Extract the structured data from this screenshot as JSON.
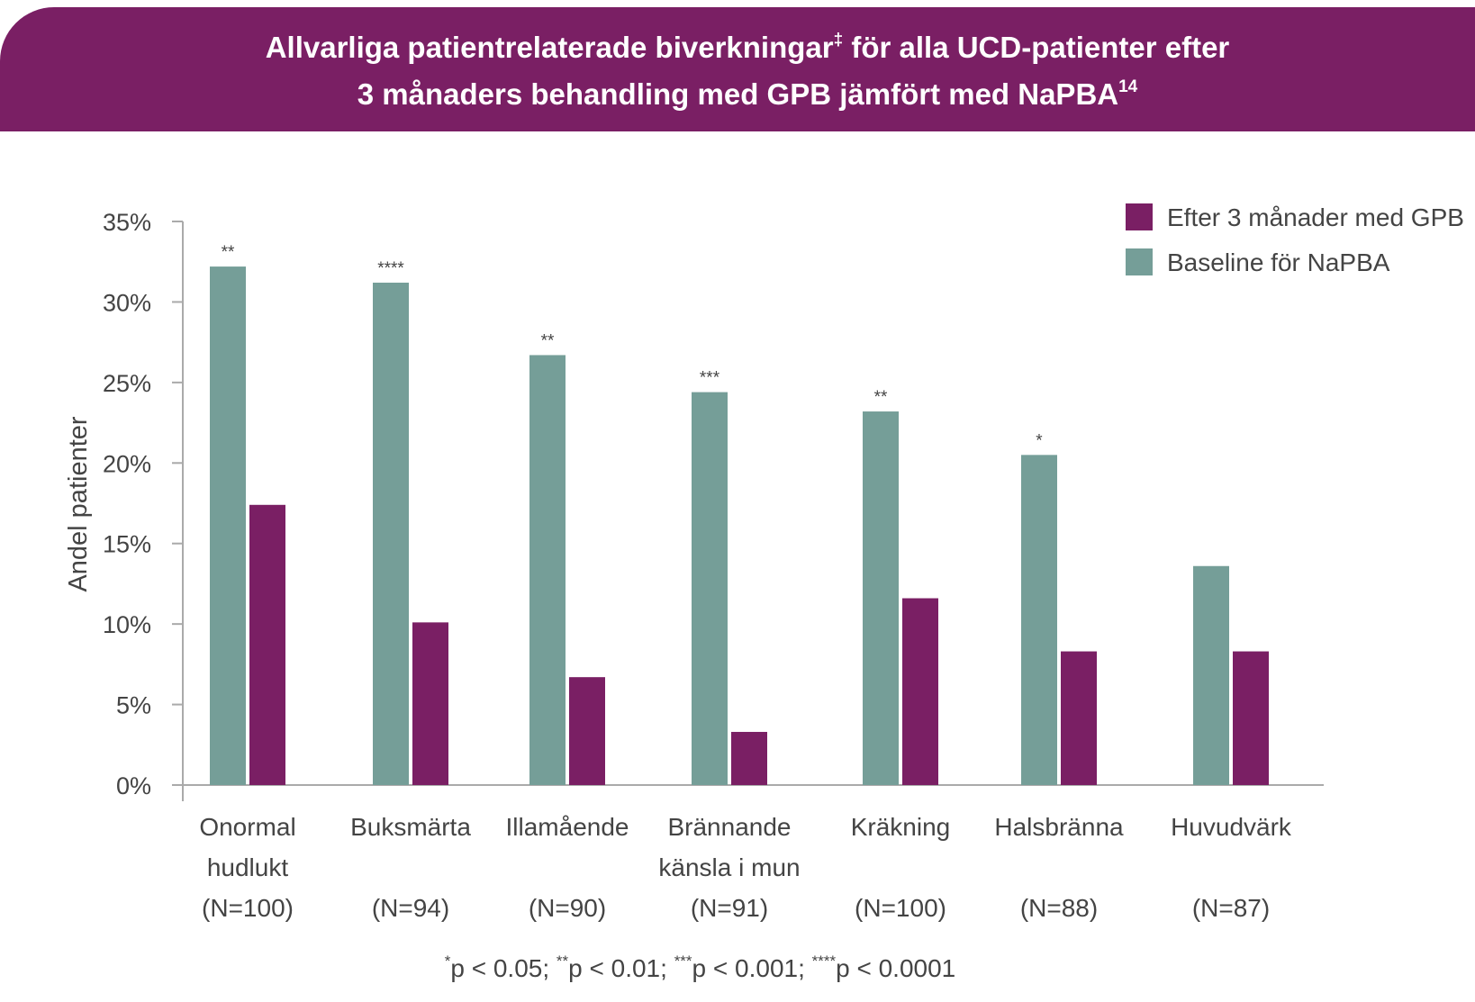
{
  "title": {
    "line1_main": "Allvarliga patientrelaterade biverkningar",
    "line1_sup": "‡",
    "line1_end": " för alla UCD-patienter efter",
    "line2_main": "3 månaders behandling med GPB jämfört med NaPBA",
    "line2_sup": "14"
  },
  "colors": {
    "banner": "#7a1f64",
    "gpb": "#7a1f64",
    "napba": "#759e98",
    "text": "#444444",
    "axis": "#aaaaaa"
  },
  "chart_data": {
    "type": "bar",
    "ylabel": "Andel patienter",
    "ylim": [
      0,
      35
    ],
    "yticks": [
      0,
      5,
      10,
      15,
      20,
      25,
      30,
      35
    ],
    "ytick_labels": [
      "0%",
      "5%",
      "10%",
      "15%",
      "20%",
      "25%",
      "30%",
      "35%"
    ],
    "categories": [
      {
        "label_lines": [
          "Onormal",
          "hudlukt"
        ],
        "n": "(N=100)",
        "significance": "**"
      },
      {
        "label_lines": [
          "Buksmärta"
        ],
        "n": "(N=94)",
        "significance": "****"
      },
      {
        "label_lines": [
          "Illamående"
        ],
        "n": "(N=90)",
        "significance": "**"
      },
      {
        "label_lines": [
          "Brännande",
          "känsla i mun"
        ],
        "n": "(N=91)",
        "significance": "***"
      },
      {
        "label_lines": [
          "Kräkning"
        ],
        "n": "(N=100)",
        "significance": "**"
      },
      {
        "label_lines": [
          "Halsbränna"
        ],
        "n": "(N=88)",
        "significance": "*"
      },
      {
        "label_lines": [
          "Huvudvärk"
        ],
        "n": "(N=87)",
        "significance": ""
      }
    ],
    "series": [
      {
        "name": "Baseline för NaPBA",
        "key": "napba",
        "values": [
          32.2,
          31.2,
          26.7,
          24.4,
          23.2,
          20.5,
          13.6
        ]
      },
      {
        "name": "Efter 3 månader med GPB",
        "key": "gpb",
        "values": [
          17.4,
          10.1,
          6.7,
          3.3,
          11.6,
          8.3,
          8.3
        ]
      }
    ],
    "legend": [
      {
        "label": "Efter 3 månader med GPB",
        "key": "gpb"
      },
      {
        "label": "Baseline för NaPBA",
        "key": "napba"
      }
    ],
    "legend_position": "top-right"
  },
  "footnote": [
    {
      "sup": "*",
      "text": "p < 0.05; "
    },
    {
      "sup": "**",
      "text": "p < 0.01; "
    },
    {
      "sup": "***",
      "text": "p < 0.001; "
    },
    {
      "sup": "****",
      "text": "p < 0.0001"
    }
  ]
}
